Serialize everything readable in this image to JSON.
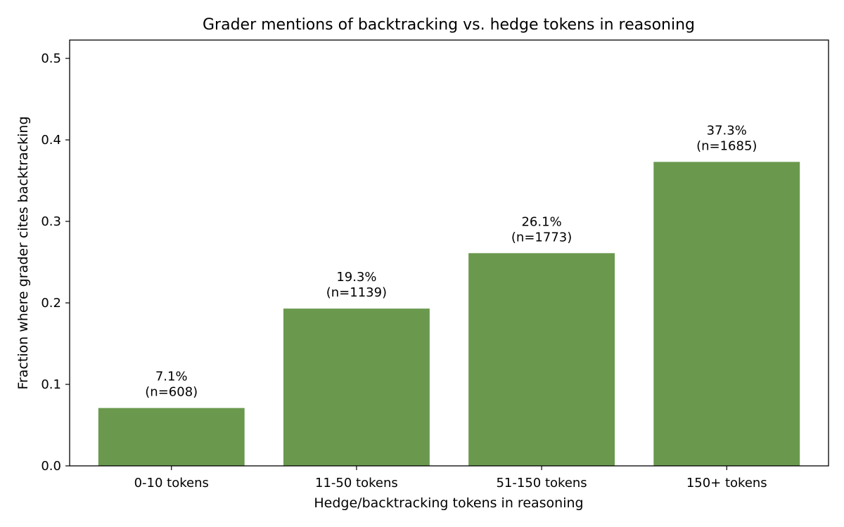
{
  "chart_data": {
    "type": "bar",
    "title": "Grader mentions of backtracking vs. hedge tokens in reasoning",
    "xlabel": "Hedge/backtracking tokens in reasoning",
    "ylabel": "Fraction where grader cites backtracking",
    "categories": [
      "0-10 tokens",
      "11-50 tokens",
      "51-150 tokens",
      "150+ tokens"
    ],
    "values": [
      0.071,
      0.193,
      0.261,
      0.373
    ],
    "value_labels": [
      "7.1%",
      "19.3%",
      "26.1%",
      "37.3%"
    ],
    "count_labels": [
      "(n=608)",
      "(n=1139)",
      "(n=1773)",
      "(n=1685)"
    ],
    "ylim": [
      0,
      0.5225
    ],
    "yticks": [
      0.0,
      0.1,
      0.2,
      0.3,
      0.4,
      0.5
    ],
    "ytick_labels": [
      "0.0",
      "0.1",
      "0.2",
      "0.3",
      "0.4",
      "0.5"
    ],
    "grid": false,
    "bar_color": "#6a994e"
  }
}
